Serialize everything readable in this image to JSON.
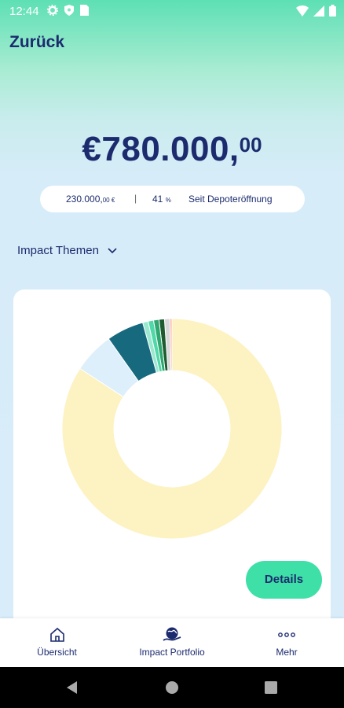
{
  "status": {
    "time": "12:44"
  },
  "header": {
    "back_label": "Zurück"
  },
  "balance": {
    "main": "€780.000,",
    "cents": "00"
  },
  "performance": {
    "gain_amount": "230.000,",
    "gain_suffix": "00 €",
    "separator": "|",
    "percent": "41",
    "percent_sign": "%",
    "since_label": "Seit Depoteröffnung"
  },
  "themes": {
    "label": "Impact Themen"
  },
  "chart_data": {
    "type": "pie",
    "variant": "donut",
    "values": [
      0.3,
      0.8,
      0.8,
      0.8,
      0.8,
      0.8,
      5.5,
      6.0,
      84.2
    ],
    "colors": [
      "#ffb0a0",
      "#d8d8d8",
      "#1e5b2f",
      "#2ea870",
      "#50d8a8",
      "#9be8d0",
      "#17697e",
      "#dceffa",
      "#fdf2c1"
    ]
  },
  "details_button": {
    "label": "Details"
  },
  "bottom_nav": {
    "items": [
      {
        "label": "Übersicht",
        "icon": "home-icon"
      },
      {
        "label": "Impact Portfolio",
        "icon": "globe-hand-icon"
      },
      {
        "label": "Mehr",
        "icon": "more-dots-icon"
      }
    ]
  }
}
